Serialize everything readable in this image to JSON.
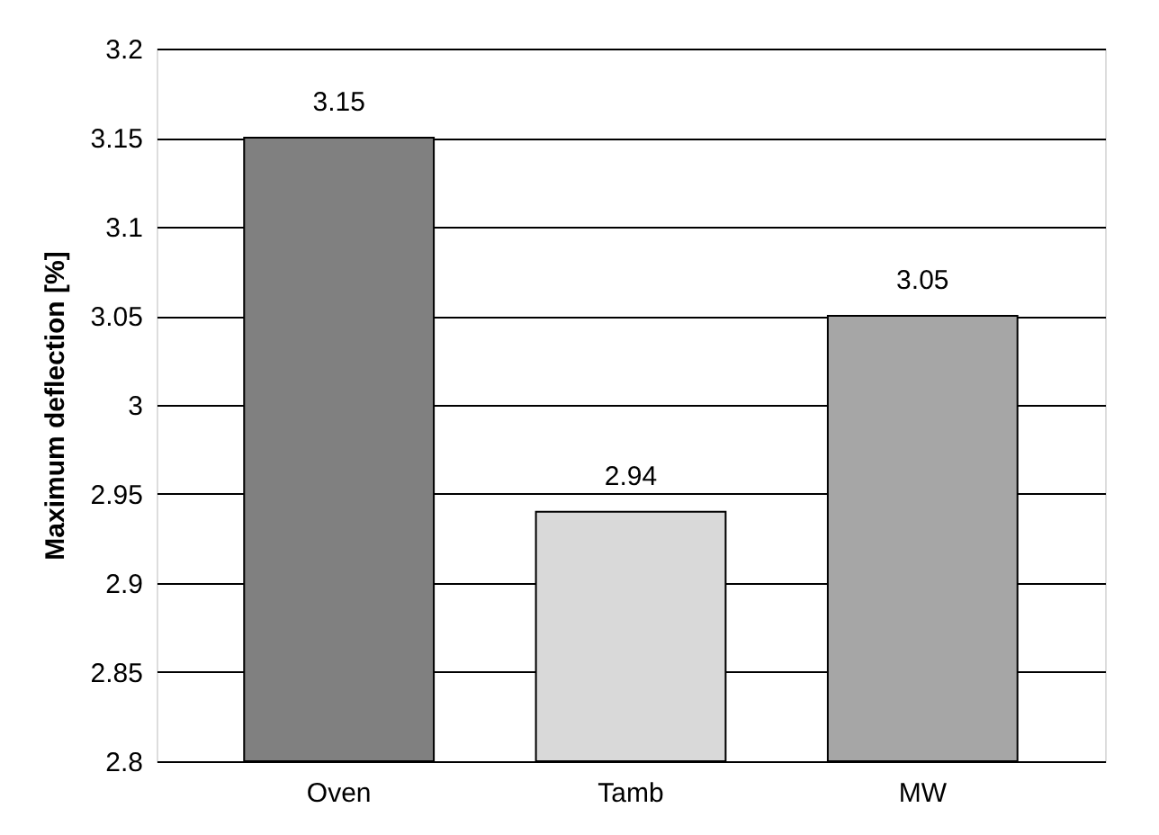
{
  "chart_data": {
    "type": "bar",
    "ylabel": "Maximum deflection [%]",
    "categories": [
      "Oven",
      "Tamb",
      "MW"
    ],
    "values": [
      3.15,
      2.94,
      3.05
    ],
    "colors": [
      "#808080",
      "#d9d9d9",
      "#a6a6a6"
    ],
    "ylim": [
      2.8,
      3.2
    ],
    "yticks": [
      2.8,
      2.85,
      2.9,
      2.95,
      3,
      3.05,
      3.1,
      3.15,
      3.2
    ],
    "grid": "y",
    "data_labels": true
  }
}
